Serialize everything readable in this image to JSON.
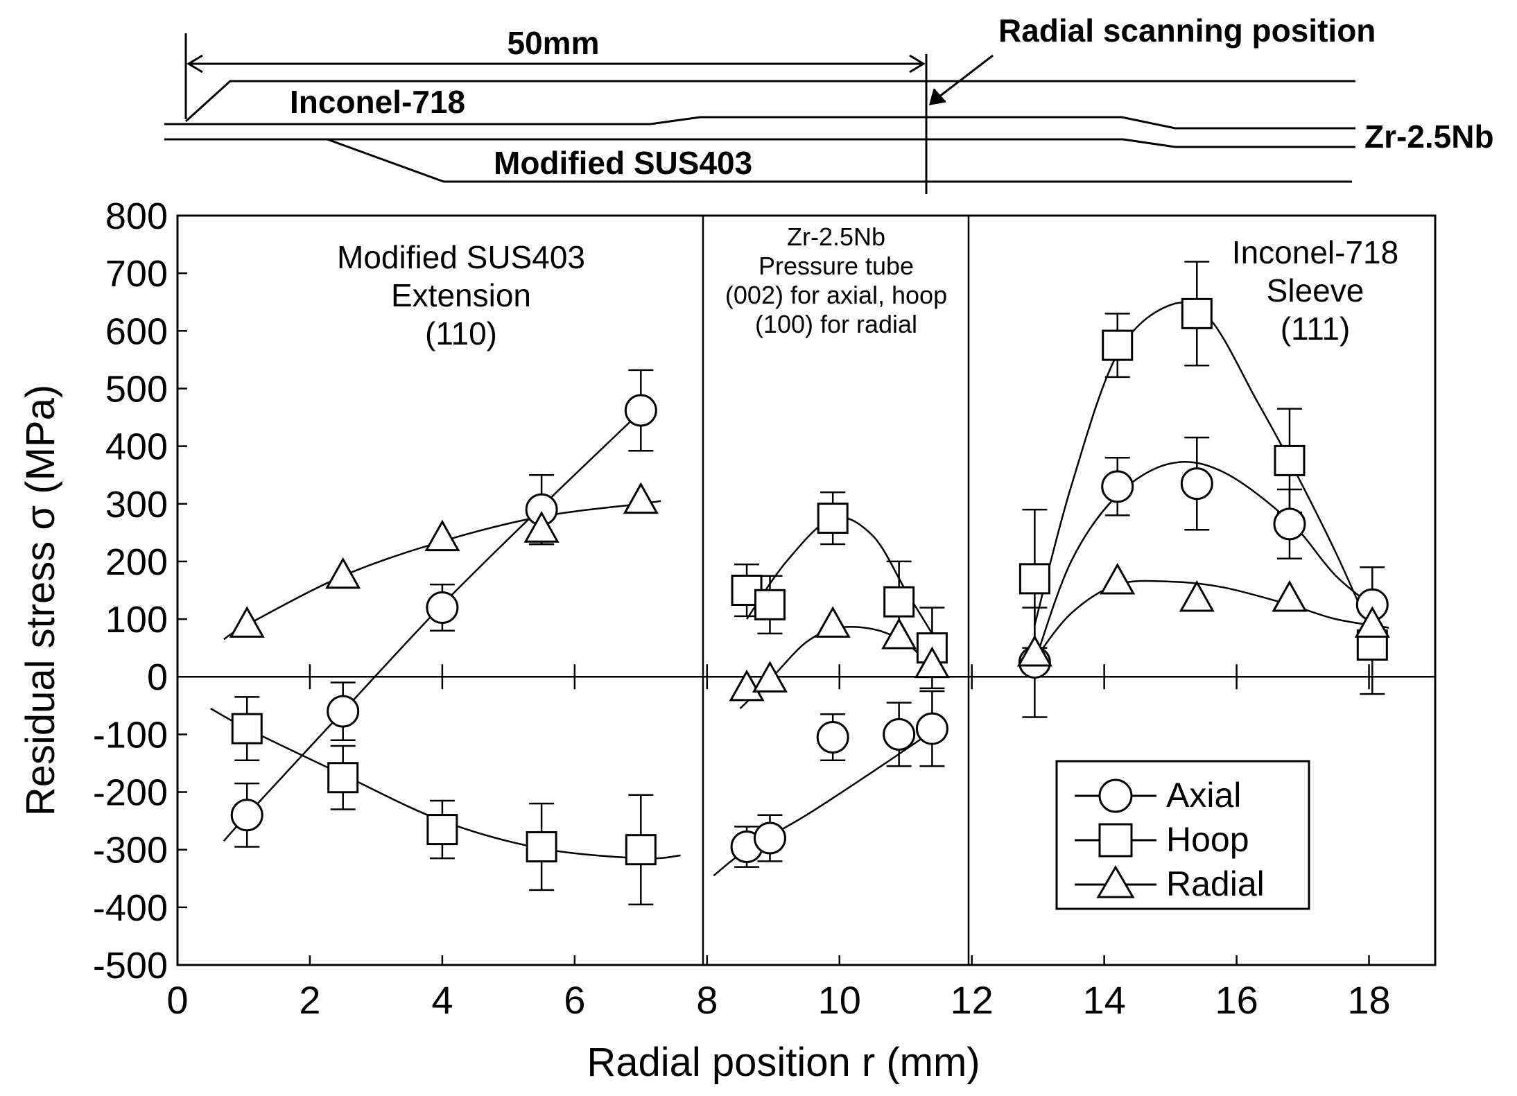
{
  "schematic": {
    "dimension_label": "50mm",
    "scan_label": "Radial scanning position",
    "inconel_label": "Inconel-718",
    "zr_label": "Zr-2.5Nb",
    "sus_label": "Modified  SUS403"
  },
  "regions": [
    {
      "lines": [
        "Modified SUS403",
        "Extension",
        "(110)"
      ]
    },
    {
      "lines": [
        "Zr-2.5Nb",
        "Pressure tube",
        "(002) for axial, hoop",
        "(100) for radial"
      ]
    },
    {
      "lines": [
        "Inconel-718",
        "Sleeve",
        "(111)"
      ]
    }
  ],
  "legend": {
    "items": [
      "Axial",
      "Hoop",
      "Radial"
    ]
  },
  "chart_data": {
    "type": "scatter",
    "xlabel": "Radial position r (mm)",
    "ylabel": "Residual stress σ (MPa)",
    "xlim": [
      0,
      19
    ],
    "ylim": [
      -500,
      800
    ],
    "xticks": [
      0,
      2,
      4,
      6,
      8,
      10,
      12,
      14,
      16,
      18
    ],
    "yticks": [
      800,
      700,
      600,
      500,
      400,
      300,
      200,
      100,
      0,
      -100,
      -200,
      -300,
      -400,
      -500
    ],
    "region_boundaries": [
      8,
      12
    ],
    "series": [
      {
        "name": "Axial",
        "marker": "circle",
        "points": [
          {
            "x": 1.05,
            "y": -240,
            "err": 55
          },
          {
            "x": 2.5,
            "y": -60,
            "err": 50
          },
          {
            "x": 4.0,
            "y": 120,
            "err": 40
          },
          {
            "x": 5.5,
            "y": 290,
            "err": 60
          },
          {
            "x": 7.0,
            "y": 462,
            "err": 70
          },
          {
            "x": 8.6,
            "y": -295,
            "err": 35
          },
          {
            "x": 8.95,
            "y": -280,
            "err": 40
          },
          {
            "x": 9.9,
            "y": -105,
            "err": 40
          },
          {
            "x": 10.9,
            "y": -100,
            "err": 55
          },
          {
            "x": 11.4,
            "y": -90,
            "err": 65
          },
          {
            "x": 12.95,
            "y": 25,
            "err": 95
          },
          {
            "x": 14.2,
            "y": 330,
            "err": 50
          },
          {
            "x": 15.4,
            "y": 335,
            "err": 80
          },
          {
            "x": 16.8,
            "y": 265,
            "err": 60
          },
          {
            "x": 18.05,
            "y": 125,
            "err": 65
          }
        ],
        "curves": [
          [
            [
              0.7,
              -285
            ],
            [
              1.05,
              -240
            ],
            [
              2.5,
              -60
            ],
            [
              4.0,
              125
            ],
            [
              5.5,
              295
            ],
            [
              7.0,
              460
            ]
          ],
          [
            [
              8.1,
              -345
            ],
            [
              8.6,
              -300
            ],
            [
              9.5,
              -240
            ],
            [
              10.5,
              -165
            ],
            [
              11.4,
              -95
            ]
          ],
          [
            [
              12.95,
              25
            ],
            [
              13.5,
              200
            ],
            [
              14.2,
              315
            ],
            [
              15.0,
              370
            ],
            [
              15.8,
              355
            ],
            [
              16.8,
              270
            ],
            [
              17.5,
              175
            ],
            [
              18.2,
              110
            ]
          ]
        ]
      },
      {
        "name": "Hoop",
        "marker": "square",
        "points": [
          {
            "x": 1.05,
            "y": -90,
            "err": 55
          },
          {
            "x": 2.5,
            "y": -175,
            "err": 55
          },
          {
            "x": 4.0,
            "y": -265,
            "err": 50
          },
          {
            "x": 5.5,
            "y": -295,
            "err": 75
          },
          {
            "x": 7.0,
            "y": -300,
            "err": 95
          },
          {
            "x": 8.6,
            "y": 150,
            "err": 45
          },
          {
            "x": 8.95,
            "y": 125,
            "err": 50
          },
          {
            "x": 9.9,
            "y": 275,
            "err": 45
          },
          {
            "x": 10.9,
            "y": 130,
            "err": 70
          },
          {
            "x": 11.4,
            "y": 50,
            "err": 70
          },
          {
            "x": 12.95,
            "y": 170,
            "err": 120
          },
          {
            "x": 14.2,
            "y": 575,
            "err": 55
          },
          {
            "x": 15.4,
            "y": 630,
            "err": 90
          },
          {
            "x": 16.8,
            "y": 375,
            "err": 90
          },
          {
            "x": 18.05,
            "y": 55,
            "err": 85
          }
        ],
        "curves": [
          [
            [
              0.5,
              -55
            ],
            [
              1.05,
              -90
            ],
            [
              2.5,
              -170
            ],
            [
              4.0,
              -250
            ],
            [
              5.5,
              -298
            ],
            [
              7.0,
              -315
            ],
            [
              7.6,
              -310
            ]
          ],
          [
            [
              8.6,
              100
            ],
            [
              9.2,
              200
            ],
            [
              9.9,
              275
            ],
            [
              10.5,
              245
            ],
            [
              11.0,
              150
            ],
            [
              11.4,
              75
            ]
          ],
          [
            [
              12.95,
              90
            ],
            [
              13.5,
              330
            ],
            [
              14.2,
              560
            ],
            [
              15.0,
              645
            ],
            [
              15.6,
              620
            ],
            [
              16.3,
              480
            ],
            [
              16.8,
              375
            ],
            [
              17.5,
              215
            ],
            [
              18.1,
              60
            ]
          ]
        ]
      },
      {
        "name": "Radial",
        "marker": "triangle",
        "points": [
          {
            "x": 1.05,
            "y": 90
          },
          {
            "x": 2.5,
            "y": 175
          },
          {
            "x": 4.0,
            "y": 240
          },
          {
            "x": 5.5,
            "y": 255,
            "err": 25
          },
          {
            "x": 7.0,
            "y": 305
          },
          {
            "x": 8.6,
            "y": -20
          },
          {
            "x": 8.95,
            "y": -5
          },
          {
            "x": 9.9,
            "y": 90
          },
          {
            "x": 10.9,
            "y": 70
          },
          {
            "x": 11.4,
            "y": 20
          },
          {
            "x": 12.95,
            "y": 40
          },
          {
            "x": 14.2,
            "y": 165
          },
          {
            "x": 15.4,
            "y": 135
          },
          {
            "x": 16.8,
            "y": 135
          },
          {
            "x": 18.05,
            "y": 90
          }
        ],
        "curves": [
          [
            [
              0.7,
              65
            ],
            [
              1.05,
              90
            ],
            [
              2.5,
              175
            ],
            [
              4.0,
              235
            ],
            [
              5.5,
              278
            ],
            [
              7.0,
              300
            ],
            [
              7.3,
              305
            ]
          ],
          [
            [
              8.5,
              -55
            ],
            [
              8.95,
              -5
            ],
            [
              9.5,
              60
            ],
            [
              10.0,
              85
            ],
            [
              10.6,
              80
            ],
            [
              11.1,
              50
            ],
            [
              11.4,
              10
            ]
          ],
          [
            [
              12.95,
              30
            ],
            [
              13.5,
              110
            ],
            [
              14.2,
              160
            ],
            [
              15.0,
              165
            ],
            [
              15.8,
              155
            ],
            [
              16.8,
              125
            ],
            [
              17.5,
              100
            ],
            [
              18.3,
              85
            ]
          ]
        ]
      }
    ]
  }
}
